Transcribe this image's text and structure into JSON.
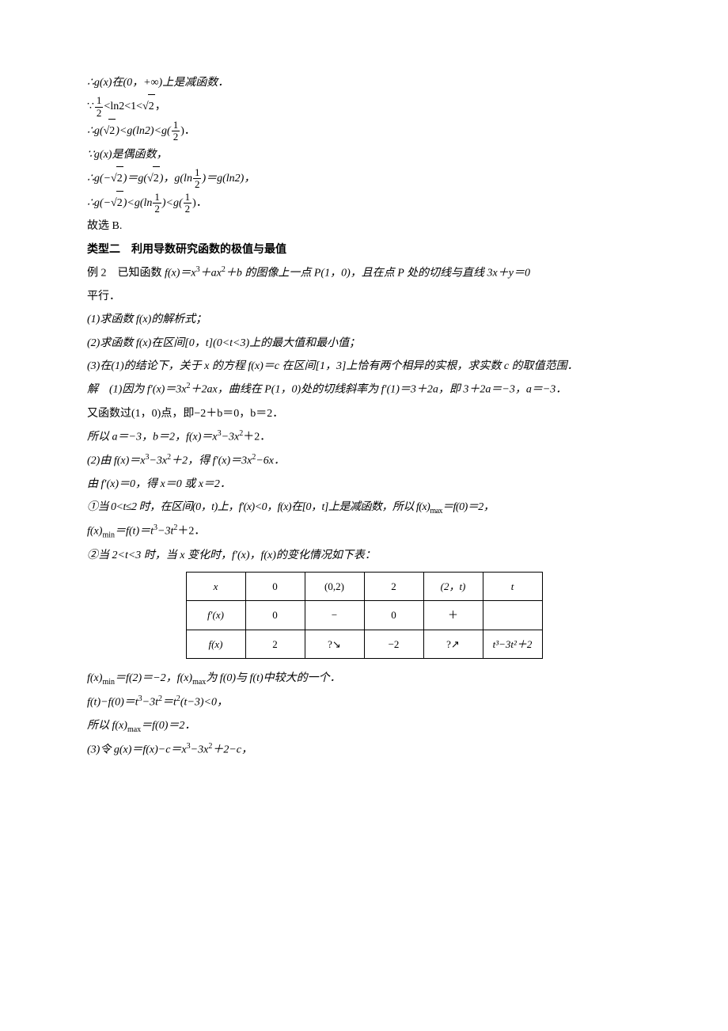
{
  "p1": "∴g(x)在(0，+∞)上是减函数．",
  "p2_pre": "∵",
  "p2_f1n": "1",
  "p2_f1d": "2",
  "p2_mid": "<ln2<1<",
  "p2_sqrt": "2",
  "p2_end": "，",
  "p3_pre": "∴g(",
  "p3_sqrt": "2",
  "p3_mid": ")<g(ln2)<g(",
  "p3_f1n": "1",
  "p3_f1d": "2",
  "p3_end": ")．",
  "p4": "∵g(x)是偶函数，",
  "p5_pre": "∴g(−",
  "p5_sqrt1": "2",
  "p5_a": ")＝g(",
  "p5_sqrt2": "2",
  "p5_b": ")，g(ln",
  "p5_f1n": "1",
  "p5_f1d": "2",
  "p5_c": ")＝g(ln2)，",
  "p6_pre": "∴g(−",
  "p6_sqrt": "2",
  "p6_a": ")<g(ln",
  "p6_f1n": "1",
  "p6_f1d": "2",
  "p6_b": ")<g(",
  "p6_f2n": "1",
  "p6_f2d": "2",
  "p6_c": ")．",
  "p7": "故选 B.",
  "h2": "类型二　利用导数研究函数的极值与最值",
  "ex2_a": "例 2　已知函数 ",
  "ex2_b": "f(x)＝x",
  "ex2_c": "＋ax",
  "ex2_d": "＋b 的图像上一点 P(1，0)，且在点 P 处的切线与直线 3x＋y＝0",
  "ex2_e": "平行．",
  "q1": "(1)求函数 f(x)的解析式；",
  "q2": "(2)求函数 f(x)在区间[0，t](0<t<3)上的最大值和最小值；",
  "q3": "(3)在(1)的结论下，关于 x 的方程 f(x)＝c 在区间[1，3]上恰有两个相异的实根，求实数 c 的取值范围．",
  "s1_a": "解　(1)因为 f′(x)＝3x",
  "s1_b": "＋2ax，曲线在 P(1，0)处的切线斜率为 f′(1)＝3＋2a，即 3＋2a＝−3，a＝−3．",
  "s2": "又函数过(1，0)点，即−2＋b＝0，b＝2．",
  "s3_a": "所以 a＝−3，b＝2，f(x)＝x",
  "s3_b": "−3x",
  "s3_c": "＋2．",
  "s4_a": "(2)由 f(x)＝x",
  "s4_b": "−3x",
  "s4_c": "＋2，得 f′(x)＝3x",
  "s4_d": "−6x．",
  "s5": "由 f′(x)＝0，得 x＝0 或 x＝2．",
  "s6_a": "①当 0<t≤2 时，在区间(0，t)上，f′(x)<0，f(x)在[0，t]上是减函数，所以 f(x)",
  "s6_b": "＝f(0)＝2，",
  "s6_c": "f(x)",
  "s6_d": "＝f(t)＝t",
  "s6_e": "−3t",
  "s6_f": "＋2．",
  "s7": "②当 2<t<3 时，当 x 变化时，f′(x)，f(x)的变化情况如下表：",
  "table": {
    "rows": [
      [
        "x",
        "0",
        "(0,2)",
        "2",
        "(2，t)",
        "t"
      ],
      [
        "f′(x)",
        "0",
        "−",
        "0",
        "＋",
        ""
      ],
      [
        "f(x)",
        "2",
        "?↘",
        "−2",
        "?↗",
        "t³−3t²＋2"
      ]
    ]
  },
  "s8_a": "f(x)",
  "s8_b": "＝f(2)＝−2，f(x)",
  "s8_c": "为 f(0)与 f(t)中较大的一个．",
  "s9_a": "f(t)−f(0)＝t",
  "s9_b": "−3t",
  "s9_c": "＝t",
  "s9_d": "(t−3)<0，",
  "s10_a": "所以 f(x)",
  "s10_b": "＝f(0)＝2．",
  "s11_a": "(3)令 g(x)＝f(x)−c＝x",
  "s11_b": "−3x",
  "s11_c": "＋2−c，",
  "sup3": "3",
  "sup2": "2",
  "submax": "max",
  "submin": "min"
}
